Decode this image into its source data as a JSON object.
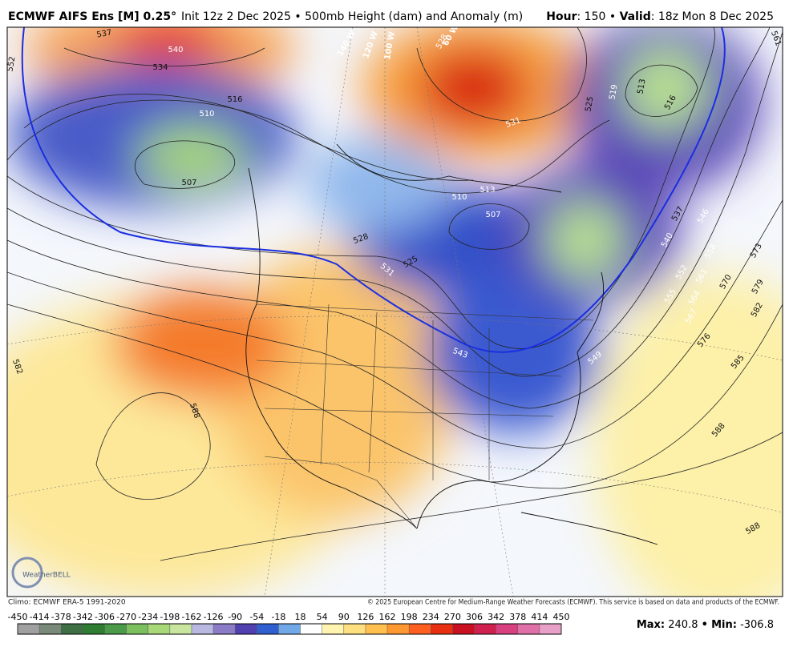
{
  "header": {
    "title": "ECMWF AIFS Ens [M] 0.25°",
    "subtitle": "Init 12z 2 Dec 2025 • 500mb Height (dam) and Anomaly (m)",
    "hour_label": "Hour",
    "hour_text": ": 150 •",
    "valid_label": "Valid",
    "valid_text": ": 18z Mon 8 Dec 2025"
  },
  "map": {
    "contour_labels": [
      "537",
      "540",
      "534",
      "552",
      "516",
      "510",
      "507",
      "528",
      "531",
      "525",
      "519",
      "513",
      "516",
      "561",
      "513",
      "510",
      "507",
      "528",
      "525",
      "531",
      "543",
      "549",
      "537",
      "546",
      "540",
      "552",
      "558",
      "561",
      "555",
      "564",
      "567",
      "570",
      "573",
      "579",
      "582",
      "576",
      "585",
      "582",
      "588",
      "588",
      "588"
    ],
    "longitude_labels": [
      "140 W",
      "120 W",
      "100 W",
      "60 W"
    ],
    "logo": "WeatherBELL"
  },
  "footer": {
    "climo": "Climo: ECMWF ERA-5 1991-2020",
    "copyright": "© 2025 European Centre for Medium-Range Weather Forecasts (ECMWF). This service is based on data and products of the ECMWF."
  },
  "colorbar": {
    "ticks": [
      -450,
      -414,
      -378,
      -342,
      -306,
      -270,
      -234,
      -198,
      -162,
      -126,
      -90,
      -54,
      -18,
      18,
      54,
      90,
      126,
      162,
      198,
      234,
      270,
      306,
      342,
      378,
      414,
      450
    ]
  },
  "stats": {
    "max_label": "Max:",
    "max": 240.8,
    "separator": "•",
    "min_label": "Min:",
    "min": -306.8
  }
}
